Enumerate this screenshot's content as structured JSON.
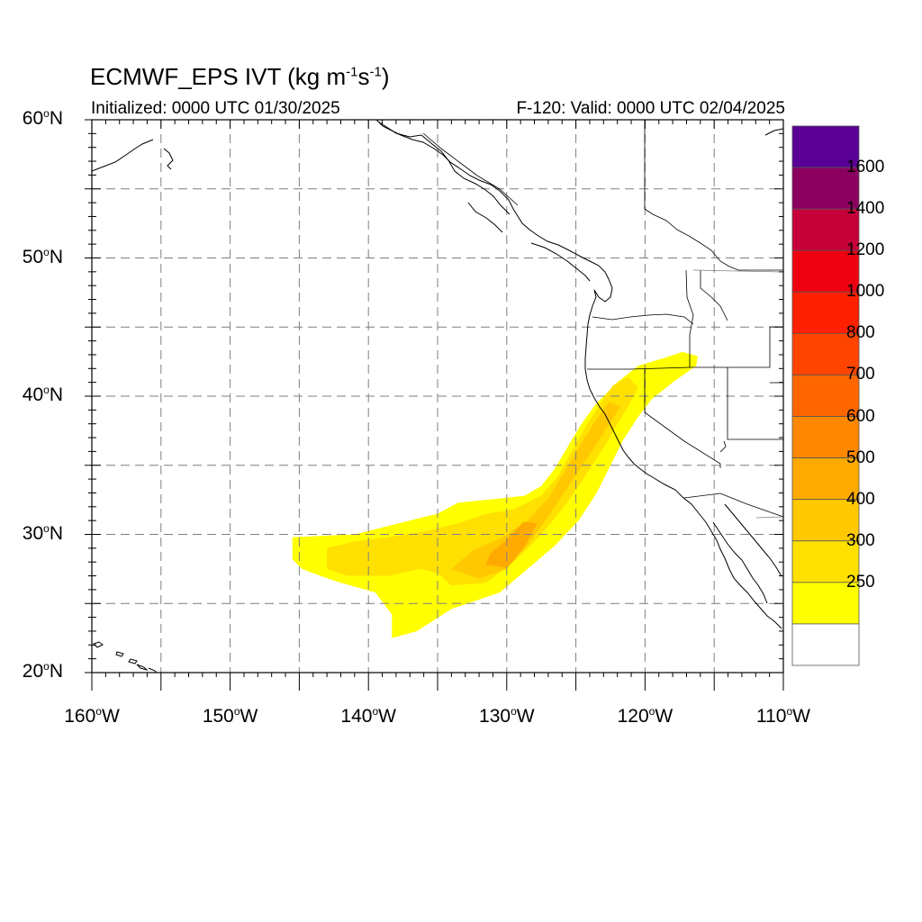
{
  "map": {
    "title": "ECMWF_EPS IVT",
    "units_prefix": "(kg m",
    "units_exp1": "-1",
    "units_mid": "s",
    "units_exp2": "-1",
    "units_suffix": ")",
    "init_text": "Initialized: 0000 UTC 01/30/2025",
    "valid_text": "F-120: Valid: 0000 UTC 02/04/2025",
    "lat_labels": [
      "60",
      "50",
      "40",
      "30",
      "20"
    ],
    "lat_suffix": "N",
    "lon_labels": [
      "160",
      "150",
      "140",
      "130",
      "120",
      "110"
    ],
    "lon_suffix": "W",
    "degree_symbol": "o",
    "lat_range": [
      20,
      60
    ],
    "lon_range": [
      -160,
      -110
    ],
    "colors": {
      "grid": "#7f7f7f",
      "coast": "#000000",
      "yellow": "#ffff00",
      "light_gold": "#ffe000",
      "gold": "#ffc800",
      "orange_gold": "#ffaa00"
    }
  },
  "colorbar": {
    "labels": [
      "1600",
      "1400",
      "1200",
      "1000",
      "800",
      "700",
      "600",
      "500",
      "400",
      "300",
      "250"
    ],
    "colors": [
      "#ffffff",
      "#ffff00",
      "#ffe000",
      "#ffc800",
      "#ffaa00",
      "#ff8800",
      "#ff6600",
      "#ff4400",
      "#ff2000",
      "#ee0011",
      "#c60038",
      "#8c0060",
      "#5a0096"
    ]
  }
}
